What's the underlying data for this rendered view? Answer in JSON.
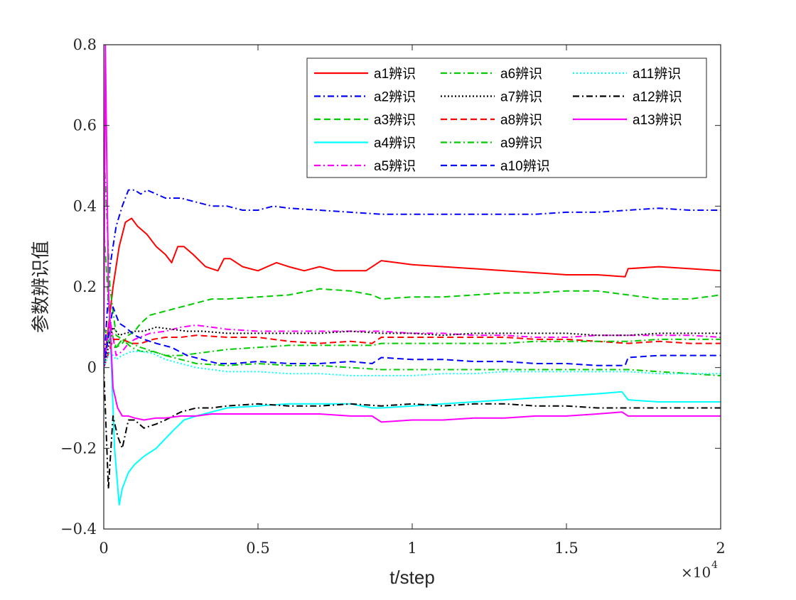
{
  "chart_data": {
    "type": "line",
    "xlabel": "t/step",
    "ylabel": "参数辨识值",
    "x_multiplier_label": "×10",
    "x_multiplier_exp": "4",
    "xlim": [
      0,
      20000
    ],
    "ylim": [
      -0.4,
      0.8
    ],
    "xticks": [
      0,
      5000,
      10000,
      15000,
      20000
    ],
    "xtick_labels": [
      "0",
      "0.5",
      "1",
      "1.5",
      "2"
    ],
    "yticks": [
      -0.4,
      -0.2,
      0,
      0.2,
      0.4,
      0.6,
      0.8
    ],
    "ytick_labels": [
      "−0.4",
      "−0.2",
      "0",
      "0.2",
      "0.4",
      "0.6",
      "0.8"
    ],
    "grid": false,
    "legend_position": "top-right",
    "series": [
      {
        "name": "a1辨识",
        "color": "#ff0000",
        "dash": "solid",
        "x": [
          0,
          300,
          500,
          700,
          900,
          1100,
          1400,
          1700,
          2000,
          2200,
          2400,
          2600,
          2900,
          3300,
          3700,
          3900,
          4100,
          4500,
          5000,
          5600,
          6000,
          6500,
          7000,
          7500,
          8000,
          8500,
          9000,
          9500,
          10000,
          11000,
          12000,
          13000,
          14000,
          15000,
          16000,
          16900,
          17000,
          18000,
          19000,
          20000
        ],
        "y": [
          0.0,
          0.2,
          0.3,
          0.36,
          0.37,
          0.35,
          0.33,
          0.3,
          0.28,
          0.26,
          0.3,
          0.3,
          0.28,
          0.25,
          0.24,
          0.27,
          0.27,
          0.25,
          0.24,
          0.26,
          0.25,
          0.24,
          0.25,
          0.24,
          0.24,
          0.24,
          0.265,
          0.26,
          0.255,
          0.25,
          0.245,
          0.24,
          0.235,
          0.23,
          0.23,
          0.225,
          0.245,
          0.25,
          0.245,
          0.24
        ]
      },
      {
        "name": "a2辨识",
        "color": "#0000ff",
        "dash": "dashdot",
        "x": [
          0,
          200,
          400,
          600,
          800,
          1000,
          1200,
          1400,
          1700,
          2000,
          2500,
          3000,
          3500,
          4000,
          4500,
          5000,
          5500,
          6000,
          7000,
          8000,
          9000,
          10000,
          11000,
          12000,
          13000,
          14000,
          15000,
          16000,
          17000,
          18000,
          19000,
          20000
        ],
        "y": [
          0.0,
          0.25,
          0.35,
          0.4,
          0.44,
          0.44,
          0.43,
          0.44,
          0.43,
          0.42,
          0.42,
          0.41,
          0.4,
          0.4,
          0.39,
          0.39,
          0.4,
          0.395,
          0.39,
          0.385,
          0.38,
          0.38,
          0.38,
          0.38,
          0.38,
          0.38,
          0.385,
          0.385,
          0.39,
          0.395,
          0.39,
          0.39
        ]
      },
      {
        "name": "a3辨识",
        "color": "#00cc00",
        "dash": "dashed",
        "x": [
          0,
          200,
          400,
          600,
          800,
          1000,
          1200,
          1500,
          2000,
          2500,
          3000,
          3500,
          4000,
          5000,
          6000,
          7000,
          8000,
          8700,
          9000,
          10000,
          11000,
          12000,
          13000,
          14000,
          15000,
          16000,
          17000,
          18000,
          19000,
          20000
        ],
        "y": [
          0.35,
          0.1,
          0.05,
          0.06,
          0.08,
          0.09,
          0.11,
          0.13,
          0.14,
          0.15,
          0.16,
          0.17,
          0.17,
          0.175,
          0.18,
          0.195,
          0.19,
          0.18,
          0.17,
          0.175,
          0.175,
          0.18,
          0.185,
          0.185,
          0.19,
          0.19,
          0.18,
          0.17,
          0.17,
          0.18
        ]
      },
      {
        "name": "a4辨识",
        "color": "#00ffff",
        "dash": "solid",
        "x": [
          0,
          200,
          350,
          500,
          600,
          800,
          1000,
          1300,
          1700,
          2200,
          2600,
          3000,
          3500,
          4000,
          5000,
          6000,
          7000,
          8000,
          8700,
          9000,
          10000,
          11000,
          12000,
          13000,
          14000,
          15000,
          16000,
          16800,
          17000,
          18000,
          19000,
          20000
        ],
        "y": [
          0.0,
          0.1,
          -0.2,
          -0.34,
          -0.3,
          -0.26,
          -0.24,
          -0.22,
          -0.2,
          -0.16,
          -0.13,
          -0.12,
          -0.11,
          -0.1,
          -0.095,
          -0.09,
          -0.09,
          -0.09,
          -0.1,
          -0.1,
          -0.095,
          -0.09,
          -0.085,
          -0.08,
          -0.075,
          -0.07,
          -0.065,
          -0.06,
          -0.08,
          -0.085,
          -0.085,
          -0.085
        ]
      },
      {
        "name": "a5辨识",
        "color": "#ff00ff",
        "dash": "dashdot",
        "x": [
          0,
          200,
          400,
          600,
          800,
          1000,
          1500,
          2000,
          2500,
          3000,
          3500,
          4000,
          5000,
          6000,
          7000,
          8000,
          9000,
          10000,
          11000,
          12000,
          13000,
          14000,
          15000,
          16000,
          17000,
          18000,
          19000,
          20000
        ],
        "y": [
          0.0,
          0.12,
          0.03,
          0.04,
          0.06,
          0.07,
          0.085,
          0.09,
          0.1,
          0.105,
          0.1,
          0.095,
          0.09,
          0.09,
          0.09,
          0.09,
          0.09,
          0.085,
          0.085,
          0.08,
          0.08,
          0.075,
          0.075,
          0.08,
          0.08,
          0.08,
          0.08,
          0.075
        ]
      },
      {
        "name": "a6辨识",
        "color": "#00cc00",
        "dash": "dashdot",
        "x": [
          0,
          200,
          400,
          600,
          900,
          1200,
          1600,
          2000,
          2500,
          3000,
          4000,
          5000,
          6000,
          7000,
          8000,
          9000,
          10000,
          11000,
          12000,
          13000,
          14000,
          15000,
          16000,
          17000,
          18000,
          19000,
          20000
        ],
        "y": [
          0.1,
          0.06,
          0.05,
          0.07,
          0.06,
          0.05,
          0.04,
          0.03,
          0.02,
          0.01,
          0.005,
          0.01,
          0.005,
          0.005,
          0.0,
          -0.005,
          -0.005,
          -0.005,
          -0.005,
          -0.005,
          -0.005,
          -0.005,
          -0.005,
          -0.005,
          -0.01,
          -0.015,
          -0.02
        ]
      },
      {
        "name": "a7辨识",
        "color": "#000000",
        "dash": "dotted",
        "x": [
          0,
          300,
          500,
          700,
          1000,
          1300,
          1700,
          2200,
          2700,
          3200,
          4000,
          5000,
          6000,
          7000,
          8000,
          9000,
          10000,
          11000,
          12000,
          13000,
          14000,
          15000,
          16000,
          17000,
          18000,
          19000,
          20000
        ],
        "y": [
          0.0,
          0.1,
          0.08,
          0.085,
          0.09,
          0.09,
          0.1,
          0.095,
          0.09,
          0.09,
          0.085,
          0.085,
          0.085,
          0.085,
          0.09,
          0.085,
          0.085,
          0.08,
          0.085,
          0.085,
          0.085,
          0.085,
          0.08,
          0.08,
          0.085,
          0.085,
          0.085
        ]
      },
      {
        "name": "a8辨识",
        "color": "#ff0000",
        "dash": "dashed",
        "x": [
          0,
          300,
          600,
          900,
          1200,
          1600,
          2000,
          2500,
          3000,
          4000,
          5000,
          6000,
          7000,
          8000,
          8700,
          9000,
          10000,
          11000,
          12000,
          13000,
          14000,
          15000,
          16000,
          17000,
          18000,
          19000,
          20000
        ],
        "y": [
          0.0,
          0.07,
          0.07,
          0.06,
          0.06,
          0.07,
          0.075,
          0.075,
          0.08,
          0.075,
          0.075,
          0.065,
          0.06,
          0.065,
          0.06,
          0.075,
          0.075,
          0.075,
          0.075,
          0.075,
          0.07,
          0.07,
          0.065,
          0.06,
          0.065,
          0.06,
          0.06
        ]
      },
      {
        "name": "a9辨识",
        "color": "#00cc00",
        "dash": "dashdot",
        "x": [
          0,
          200,
          400,
          600,
          900,
          1200,
          1600,
          2000,
          2500,
          3000,
          4000,
          5000,
          6000,
          7000,
          8000,
          8700,
          9000,
          10000,
          11000,
          12000,
          13000,
          14000,
          15000,
          16000,
          17000,
          18000,
          19000,
          20000
        ],
        "y": [
          0.55,
          0.2,
          0.08,
          0.07,
          0.05,
          0.04,
          0.04,
          0.03,
          0.03,
          0.035,
          0.045,
          0.05,
          0.055,
          0.055,
          0.055,
          0.055,
          0.06,
          0.06,
          0.06,
          0.06,
          0.06,
          0.065,
          0.065,
          0.065,
          0.065,
          0.07,
          0.07,
          0.07
        ]
      },
      {
        "name": "a10辨识",
        "color": "#0000ff",
        "dash": "dashed",
        "x": [
          0,
          300,
          500,
          700,
          1000,
          1300,
          1700,
          2200,
          2700,
          3200,
          3700,
          4200,
          5000,
          6000,
          7000,
          8000,
          8700,
          9000,
          10000,
          11000,
          12000,
          13000,
          14000,
          15000,
          16000,
          16900,
          17000,
          18000,
          19000,
          20000
        ],
        "y": [
          0.0,
          0.15,
          0.11,
          0.1,
          0.08,
          0.07,
          0.06,
          0.05,
          0.03,
          0.02,
          0.01,
          0.01,
          0.015,
          0.01,
          0.01,
          0.015,
          0.01,
          0.025,
          0.02,
          0.02,
          0.015,
          0.015,
          0.01,
          0.01,
          0.005,
          0.005,
          0.025,
          0.03,
          0.03,
          0.03
        ]
      },
      {
        "name": "a11辨识",
        "color": "#00ffff",
        "dash": "dotted",
        "x": [
          0,
          200,
          400,
          600,
          900,
          1200,
          1600,
          2000,
          2500,
          3000,
          3500,
          4000,
          5000,
          6000,
          7000,
          8000,
          9000,
          10000,
          11000,
          12000,
          13000,
          14000,
          15000,
          16000,
          17000,
          18000,
          19000,
          20000
        ],
        "y": [
          0.0,
          0.04,
          0.02,
          0.03,
          0.04,
          0.04,
          0.035,
          0.02,
          0.01,
          0.0,
          -0.005,
          -0.01,
          -0.01,
          -0.015,
          -0.015,
          -0.02,
          -0.02,
          -0.02,
          -0.015,
          -0.015,
          -0.01,
          -0.01,
          -0.01,
          -0.01,
          -0.01,
          -0.015,
          -0.015,
          -0.015
        ]
      },
      {
        "name": "a12辨识",
        "color": "#000000",
        "dash": "dashdot",
        "x": [
          0,
          150,
          300,
          450,
          600,
          800,
          1000,
          1300,
          1700,
          2000,
          2500,
          3000,
          3500,
          4000,
          5000,
          6000,
          7000,
          8000,
          9000,
          10000,
          11000,
          12000,
          13000,
          14000,
          15000,
          16000,
          17000,
          18000,
          19000,
          20000
        ],
        "y": [
          0.0,
          -0.3,
          -0.12,
          -0.17,
          -0.2,
          -0.13,
          -0.13,
          -0.15,
          -0.14,
          -0.13,
          -0.11,
          -0.1,
          -0.1,
          -0.095,
          -0.09,
          -0.095,
          -0.095,
          -0.09,
          -0.095,
          -0.09,
          -0.095,
          -0.09,
          -0.09,
          -0.095,
          -0.095,
          -0.1,
          -0.1,
          -0.1,
          -0.1,
          -0.1
        ]
      },
      {
        "name": "a13辨识",
        "color": "#ff00ff",
        "dash": "solid",
        "x": [
          0,
          50,
          150,
          300,
          450,
          600,
          800,
          1000,
          1300,
          1700,
          2000,
          2500,
          3000,
          3500,
          4000,
          5000,
          6000,
          7000,
          8000,
          8700,
          9000,
          10000,
          11000,
          12000,
          13000,
          14000,
          15000,
          16000,
          16800,
          17000,
          18000,
          19000,
          20000
        ],
        "y": [
          0.0,
          0.8,
          0.2,
          -0.05,
          -0.1,
          -0.12,
          -0.12,
          -0.125,
          -0.13,
          -0.125,
          -0.125,
          -0.12,
          -0.12,
          -0.115,
          -0.115,
          -0.115,
          -0.115,
          -0.115,
          -0.12,
          -0.12,
          -0.135,
          -0.13,
          -0.13,
          -0.125,
          -0.125,
          -0.12,
          -0.12,
          -0.115,
          -0.11,
          -0.12,
          -0.12,
          -0.12,
          -0.12
        ]
      }
    ]
  }
}
